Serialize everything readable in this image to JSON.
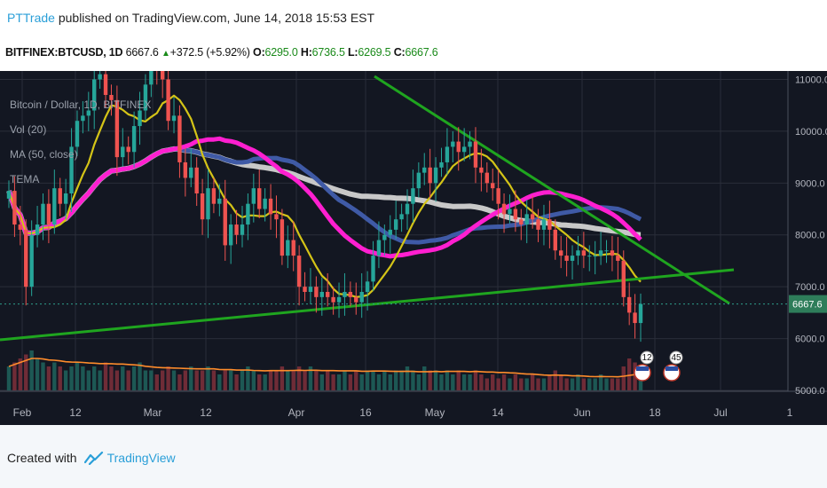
{
  "header": {
    "author": "PTTrade",
    "published_text": " published on TradingView.com, June 14, 2018 15:53 EST",
    "symbol": "BITFINEX:BTCUSD, 1D",
    "last": "6667.6",
    "change": "+372.5 (+5.92%)",
    "o_label": "O:",
    "o_value": "6295.0",
    "h_label": "H:",
    "h_value": "6736.5",
    "l_label": "L:",
    "l_value": "6269.5",
    "c_label": "C:",
    "c_value": "6667.6"
  },
  "legend": {
    "line1": "Bitcoin / Dollar, 1D, BITFINEX",
    "line2": "Vol (20)",
    "line3": "MA (50, close)",
    "line4": "TEMA"
  },
  "footer": {
    "created_with": "Created with",
    "brand": "TradingView"
  },
  "colors": {
    "background": "#131722",
    "grid": "#2a2e39",
    "up": "#26a69a",
    "down": "#ef5350",
    "ma": "#d4c417",
    "magenta": "#ff1fd0",
    "blue": "#3f5aa6",
    "white": "#c8c8c8",
    "trend": "#1fa51f",
    "price_tag": "#2e7d5a",
    "vol_ma": "#ff8c2b"
  },
  "chart_data": {
    "type": "candlestick",
    "price_axis": {
      "ticks": [
        5000,
        6000,
        7000,
        8000,
        9000,
        10000,
        11000
      ],
      "tick_labels": [
        "5000.0",
        "6000.0",
        "7000.0",
        "8000.0",
        "9000.0",
        "10000.0",
        "11000.0"
      ]
    },
    "time_axis": {
      "tick_labels": [
        "Feb",
        "12",
        "Mar",
        "12",
        "Apr",
        "16",
        "May",
        "14",
        "Jun",
        "18",
        "Jul",
        "1"
      ]
    },
    "current_price_label": "6667.6",
    "event_badges": [
      "12",
      "45"
    ],
    "closes": [
      8850,
      8200,
      8100,
      7000,
      8000,
      8200,
      8600,
      8200,
      8900,
      8600,
      8800,
      9700,
      10200,
      10300,
      10400,
      11000,
      11100,
      10700,
      10600,
      9500,
      9700,
      9600,
      10100,
      10400,
      10900,
      11400,
      11200,
      11000,
      10200,
      10300,
      9400,
      9100,
      9300,
      8800,
      8300,
      8900,
      8600,
      8700,
      7800,
      8200,
      8000,
      8200,
      8600,
      8900,
      8500,
      8700,
      8400,
      8300,
      7600,
      7900,
      7600,
      7000,
      6900,
      7000,
      6800,
      6900,
      6800,
      6700,
      6800,
      6900,
      6800,
      6700,
      6900,
      7100,
      7600,
      7900,
      8000,
      8100,
      8300,
      8400,
      8600,
      8900,
      9200,
      9300,
      9000,
      9300,
      9400,
      9700,
      9800,
      9600,
      9700,
      9800,
      9300,
      9200,
      9000,
      8900,
      8600,
      8400,
      8500,
      8300,
      8200,
      8400,
      8300,
      8100,
      8300,
      8100,
      7700,
      7600,
      7500,
      7600,
      7700,
      7600,
      7600,
      7600,
      7700,
      7700,
      7600,
      7500,
      6800,
      6500,
      6300,
      6667.6
    ],
    "volume": [
      0.6,
      0.7,
      0.8,
      0.9,
      1,
      0.8,
      0.7,
      0.6,
      0.7,
      0.6,
      0.5,
      0.6,
      0.7,
      0.6,
      0.5,
      0.6,
      0.5,
      0.7,
      0.6,
      0.5,
      0.6,
      0.5,
      0.6,
      0.7,
      0.5,
      0.5,
      0.4,
      0.5,
      0.6,
      0.5,
      0.4,
      0.5,
      0.6,
      0.5,
      0.5,
      0.6,
      0.5,
      0.4,
      0.5,
      0.5,
      0.4,
      0.5,
      0.6,
      0.5,
      0.4,
      0.4,
      0.5,
      0.5,
      0.6,
      0.5,
      0.5,
      0.6,
      0.5,
      0.6,
      0.5,
      0.4,
      0.5,
      0.4,
      0.4,
      0.5,
      0.4,
      0.5,
      0.4,
      0.5,
      0.5,
      0.4,
      0.5,
      0.4,
      0.5,
      0.5,
      0.6,
      0.5,
      0.4,
      0.6,
      0.5,
      0.5,
      0.4,
      0.5,
      0.4,
      0.5,
      0.4,
      0.4,
      0.5,
      0.4,
      0.3,
      0.4,
      0.3,
      0.4,
      0.3,
      0.4,
      0.3,
      0.3,
      0.4,
      0.3,
      0.3,
      0.4,
      0.5,
      0.4,
      0.3,
      0.3,
      0.4,
      0.3,
      0.3,
      0.3,
      0.4,
      0.3,
      0.3,
      0.3,
      0.6,
      0.8,
      0.7,
      0.5
    ]
  }
}
